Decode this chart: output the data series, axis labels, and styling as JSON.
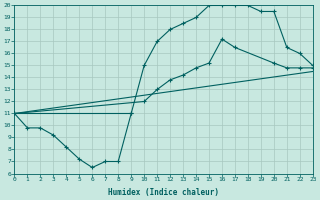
{
  "xlabel": "Humidex (Indice chaleur)",
  "bg_color": "#c8e8e0",
  "grid_color": "#a8c8c0",
  "line_color": "#006060",
  "xlim": [
    0,
    23
  ],
  "ylim": [
    6,
    20
  ],
  "line1_x": [
    0,
    1,
    2,
    3,
    4,
    5,
    6,
    7,
    8,
    9
  ],
  "line1_y": [
    11,
    9.8,
    9.8,
    9.2,
    8.2,
    7.2,
    6.5,
    7.0,
    7.0,
    11.0
  ],
  "line2_x": [
    0,
    9,
    10,
    11,
    12,
    13,
    14,
    15,
    16,
    17,
    18,
    19,
    20,
    21,
    22,
    23
  ],
  "line2_y": [
    11,
    11,
    15,
    17,
    18,
    18.5,
    19,
    20,
    20,
    20,
    20,
    19.5,
    19.5,
    16.5,
    16,
    15
  ],
  "line3_x": [
    0,
    10,
    11,
    12,
    13,
    14,
    15,
    16,
    17,
    20,
    21,
    22,
    23
  ],
  "line3_y": [
    11,
    12,
    13,
    13.8,
    14.2,
    14.8,
    15.2,
    17.2,
    16.5,
    15.2,
    14.8,
    14.8,
    14.8
  ],
  "line4_x": [
    0,
    23
  ],
  "line4_y": [
    11,
    14.5
  ],
  "xtick_labels": [
    "0",
    "1",
    "2",
    "3",
    "4",
    "5",
    "6",
    "7",
    "8",
    "9",
    "10",
    "11",
    "12",
    "13",
    "14",
    "15",
    "16",
    "17",
    "18",
    "19",
    "20",
    "21",
    "22",
    "23"
  ],
  "ytick_labels": [
    "6",
    "7",
    "8",
    "9",
    "10",
    "11",
    "12",
    "13",
    "14",
    "15",
    "16",
    "17",
    "18",
    "19",
    "20"
  ]
}
